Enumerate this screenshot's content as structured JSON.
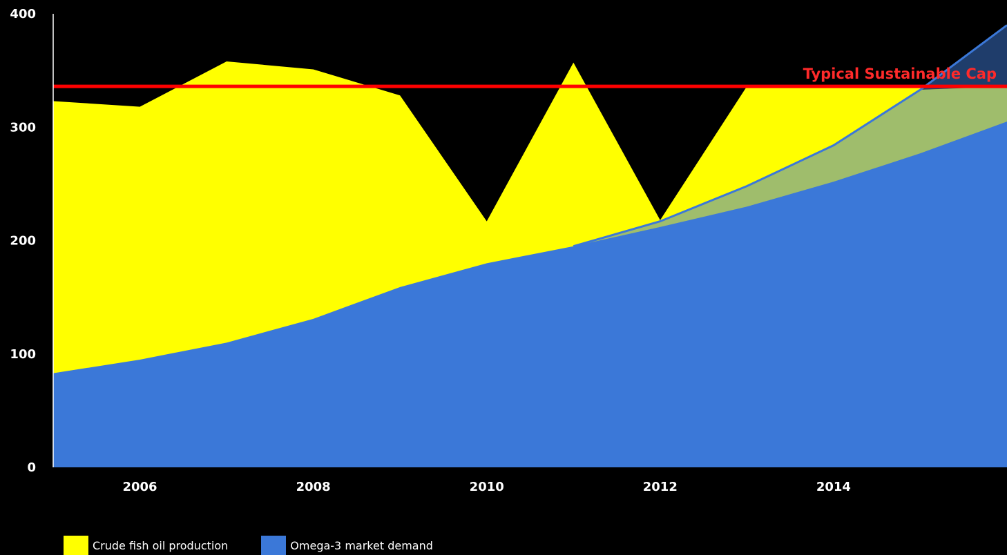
{
  "chart_data": {
    "type": "area",
    "x": [
      2005,
      2006,
      2007,
      2008,
      2009,
      2010,
      2011,
      2012,
      2013,
      2014,
      2015,
      2016
    ],
    "series": [
      {
        "name": "Crude fish oil production",
        "color": "#ffff00",
        "values": [
          323,
          318,
          358,
          351,
          328,
          217,
          357,
          218,
          336,
          336,
          336,
          336
        ]
      },
      {
        "name": "Omega-3 market demand",
        "color": "#3b78d8",
        "values": [
          83,
          95,
          110,
          131,
          159,
          180,
          195,
          212,
          230,
          252,
          277,
          305
        ]
      }
    ],
    "extra_demand_line": {
      "color": "#3b78d8",
      "overlap_color": "#9fbd6c",
      "values": [
        null,
        null,
        null,
        null,
        null,
        null,
        195,
        217,
        248,
        284,
        333,
        390
      ]
    },
    "reference_line": {
      "label": "Typical Sustainable Cap",
      "value": 336,
      "color": "#ff0000"
    },
    "x_ticks": [
      "2006",
      "2008",
      "2010",
      "2012",
      "2014"
    ],
    "x_tick_values": [
      2006,
      2008,
      2010,
      2012,
      2014
    ],
    "y_ticks": [
      "0",
      "100",
      "200",
      "300",
      "400"
    ],
    "y_tick_values": [
      0,
      100,
      200,
      300,
      400
    ],
    "xlim": [
      2005,
      2016
    ],
    "ylim": [
      0,
      400
    ],
    "legend_position": "bottom-left",
    "grid": false,
    "background": "#000000"
  }
}
